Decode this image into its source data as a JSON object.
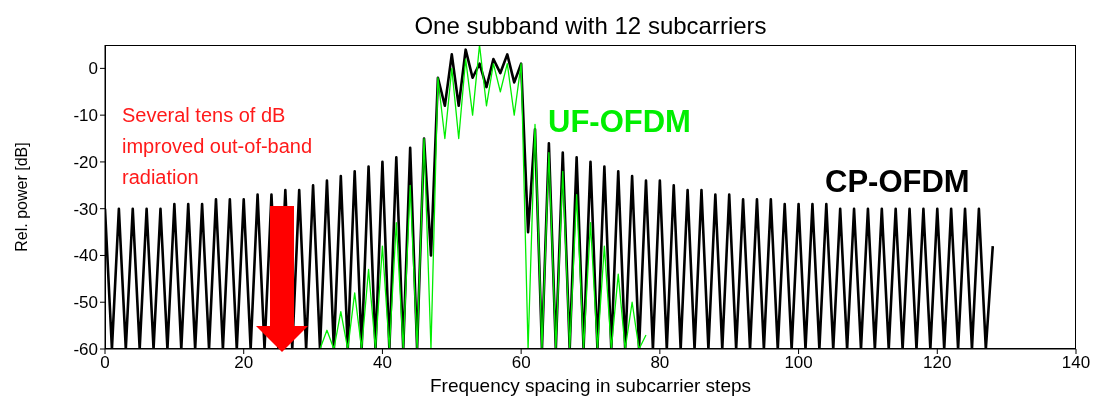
{
  "chart_data": {
    "type": "line",
    "title": "One subband with 12 subcarriers",
    "xlabel": "Frequency spacing in subcarrier steps",
    "ylabel": "Rel. power [dB]",
    "annotations": [
      "Several tens of dB improved out-of-band radiation"
    ],
    "xlim": [
      0,
      140
    ],
    "xticks": [
      0,
      20,
      40,
      60,
      80,
      100,
      120,
      140
    ],
    "ylim": [
      -60,
      5
    ],
    "yticks": [
      -60,
      -50,
      -40,
      -30,
      -20,
      -10,
      0
    ],
    "series": [
      {
        "name": "CP-OFDM",
        "color": "#000000",
        "x": [
          0,
          1,
          2,
          3,
          4,
          5,
          6,
          7,
          8,
          9,
          10,
          11,
          12,
          13,
          14,
          15,
          16,
          17,
          18,
          19,
          20,
          21,
          22,
          23,
          24,
          25,
          26,
          27,
          28,
          29,
          30,
          31,
          32,
          33,
          34,
          35,
          36,
          37,
          38,
          39,
          40,
          41,
          42,
          43,
          44,
          45,
          46,
          47,
          48,
          49,
          50,
          51,
          52,
          53,
          54,
          55,
          56,
          57,
          58,
          59,
          60,
          61,
          62,
          63,
          64,
          65,
          66,
          67,
          68,
          69,
          70,
          71,
          72,
          73,
          74,
          75,
          76,
          77,
          78,
          79,
          80,
          81,
          82,
          83,
          84,
          85,
          86,
          87,
          88,
          89,
          90,
          91,
          92,
          93,
          94,
          95,
          96,
          97,
          98,
          99,
          100,
          101,
          102,
          103,
          104,
          105,
          106,
          107,
          108,
          109,
          110,
          111,
          112,
          113,
          114,
          115,
          116,
          117,
          118,
          119,
          120,
          121,
          122,
          123,
          124,
          125,
          126,
          127,
          128
        ],
        "values": [
          -30,
          -60,
          -30,
          -60,
          -30,
          -60,
          -30,
          -60,
          -30,
          -60,
          -29,
          -60,
          -29,
          -60,
          -29,
          -60,
          -28,
          -60,
          -28,
          -60,
          -28,
          -60,
          -27,
          -60,
          -27,
          -60,
          -26,
          -60,
          -26,
          -60,
          -25,
          -60,
          -24,
          -60,
          -23,
          -60,
          -22,
          -60,
          -21,
          -60,
          -20,
          -60,
          -19,
          -60,
          -17,
          -60,
          -15,
          -40,
          -2,
          -8,
          3,
          -8,
          4,
          -2,
          1,
          -4,
          2,
          -1,
          3,
          -3,
          1,
          -35,
          -13,
          -60,
          -16,
          -60,
          -18,
          -60,
          -19,
          -60,
          -20,
          -60,
          -21,
          -60,
          -22,
          -60,
          -23,
          -60,
          -24,
          -60,
          -24,
          -60,
          -25,
          -60,
          -26,
          -60,
          -26,
          -60,
          -27,
          -60,
          -27,
          -60,
          -28,
          -60,
          -28,
          -60,
          -28,
          -60,
          -29,
          -60,
          -29,
          -60,
          -29,
          -60,
          -29,
          -60,
          -30,
          -60,
          -30,
          -60,
          -30,
          -60,
          -30,
          -60,
          -30,
          -60,
          -30,
          -60,
          -30,
          -60,
          -30,
          -60,
          -30,
          -60,
          -30,
          -60,
          -30,
          -60,
          -38
        ]
      },
      {
        "name": "UF-OFDM",
        "color": "#00ee00",
        "x": [
          31,
          32,
          33,
          34,
          35,
          36,
          37,
          38,
          39,
          40,
          41,
          42,
          43,
          44,
          45,
          46,
          47,
          48,
          49,
          50,
          51,
          52,
          53,
          54,
          55,
          56,
          57,
          58,
          59,
          60,
          61,
          62,
          63,
          64,
          65,
          66,
          67,
          68,
          69,
          70,
          71,
          72,
          73,
          74,
          75,
          76,
          77,
          78
        ],
        "values": [
          -60,
          -56,
          -60,
          -52,
          -60,
          -48,
          -60,
          -43,
          -60,
          -38,
          -60,
          -33,
          -60,
          -25,
          -60,
          -15,
          -60,
          -2,
          -15,
          0,
          -15,
          2,
          -10,
          5,
          -8,
          1,
          -5,
          1,
          -10,
          1,
          -60,
          -12,
          -60,
          -18,
          -60,
          -22,
          -60,
          -27,
          -60,
          -33,
          -60,
          -38,
          -60,
          -44,
          -60,
          -50,
          -60,
          -57
        ]
      }
    ]
  }
}
